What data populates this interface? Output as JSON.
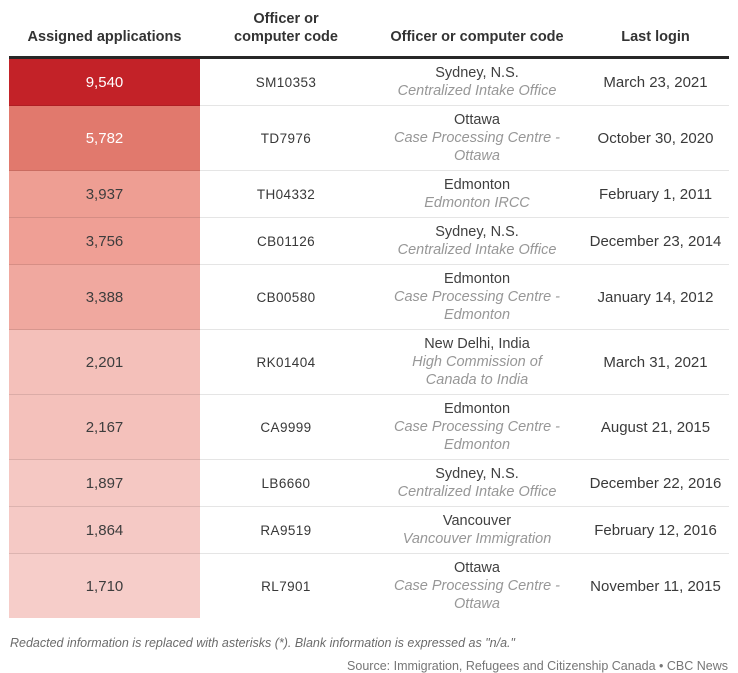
{
  "chart_data": {
    "type": "table",
    "title": "",
    "columns": [
      "Assigned applications",
      "Officer or computer code",
      "Officer or computer code",
      "Last login"
    ],
    "value_column": "Assigned applications",
    "value_range": [
      1710,
      9540
    ],
    "color_scale": {
      "min": "#f6cdc9",
      "max": "#c32228"
    },
    "rows": [
      {
        "assigned": 9540,
        "assigned_label": "9,540",
        "code": "SM10353",
        "location": "Sydney, N.S.",
        "office": "Centralized Intake Office",
        "last_login": "March 23, 2021",
        "bg": "#c32228",
        "fg": "#ffffff"
      },
      {
        "assigned": 5782,
        "assigned_label": "5,782",
        "code": "TD7976",
        "location": "Ottawa",
        "office": "Case Processing Centre - Ottawa",
        "last_login": "October 30, 2020",
        "bg": "#e1796d",
        "fg": "#ffffff"
      },
      {
        "assigned": 3937,
        "assigned_label": "3,937",
        "code": "TH04332",
        "location": "Edmonton",
        "office": "Edmonton IRCC",
        "last_login": "February 1, 2011",
        "bg": "#ee9e93",
        "fg": "#3d3d3d"
      },
      {
        "assigned": 3756,
        "assigned_label": "3,756",
        "code": "CB01126",
        "location": "Sydney, N.S.",
        "office": "Centralized Intake Office",
        "last_login": "December 23, 2014",
        "bg": "#ef9f95",
        "fg": "#3d3d3d"
      },
      {
        "assigned": 3388,
        "assigned_label": "3,388",
        "code": "CB00580",
        "location": "Edmonton",
        "office": "Case Processing Centre - Edmonton",
        "last_login": "January 14, 2012",
        "bg": "#f0a89f",
        "fg": "#3d3d3d"
      },
      {
        "assigned": 2201,
        "assigned_label": "2,201",
        "code": "RK01404",
        "location": "New Delhi, India",
        "office": "High Commission of Canada to India",
        "last_login": "March 31, 2021",
        "bg": "#f4c0ba",
        "fg": "#3d3d3d"
      },
      {
        "assigned": 2167,
        "assigned_label": "2,167",
        "code": "CA9999",
        "location": "Edmonton",
        "office": "Case Processing Centre - Edmonton",
        "last_login": "August 21, 2015",
        "bg": "#f4c1bb",
        "fg": "#3d3d3d"
      },
      {
        "assigned": 1897,
        "assigned_label": "1,897",
        "code": "LB6660",
        "location": "Sydney, N.S.",
        "office": "Centralized Intake Office",
        "last_login": "December 22, 2016",
        "bg": "#f5c8c3",
        "fg": "#3d3d3d"
      },
      {
        "assigned": 1864,
        "assigned_label": "1,864",
        "code": "RA9519",
        "location": "Vancouver",
        "office": "Vancouver Immigration",
        "last_login": "February 12, 2016",
        "bg": "#f5c9c5",
        "fg": "#3d3d3d"
      },
      {
        "assigned": 1710,
        "assigned_label": "1,710",
        "code": "RL7901",
        "location": "Ottawa",
        "office": "Case Processing Centre - Ottawa",
        "last_login": "November 11, 2015",
        "bg": "#f6cdc9",
        "fg": "#3d3d3d"
      }
    ]
  },
  "footnote": "Redacted information is replaced with asterisks (*). Blank information is expressed as \"n/a.\"",
  "source": "Source: Immigration, Refugees and Citizenship Canada • CBC News",
  "colors": {
    "header_border": "#272727",
    "row_divider": "rgba(0,0,0,0.10)",
    "header_text": "#333333",
    "italic_office_text": "#979797",
    "footnote_text": "#6b6b6b"
  }
}
